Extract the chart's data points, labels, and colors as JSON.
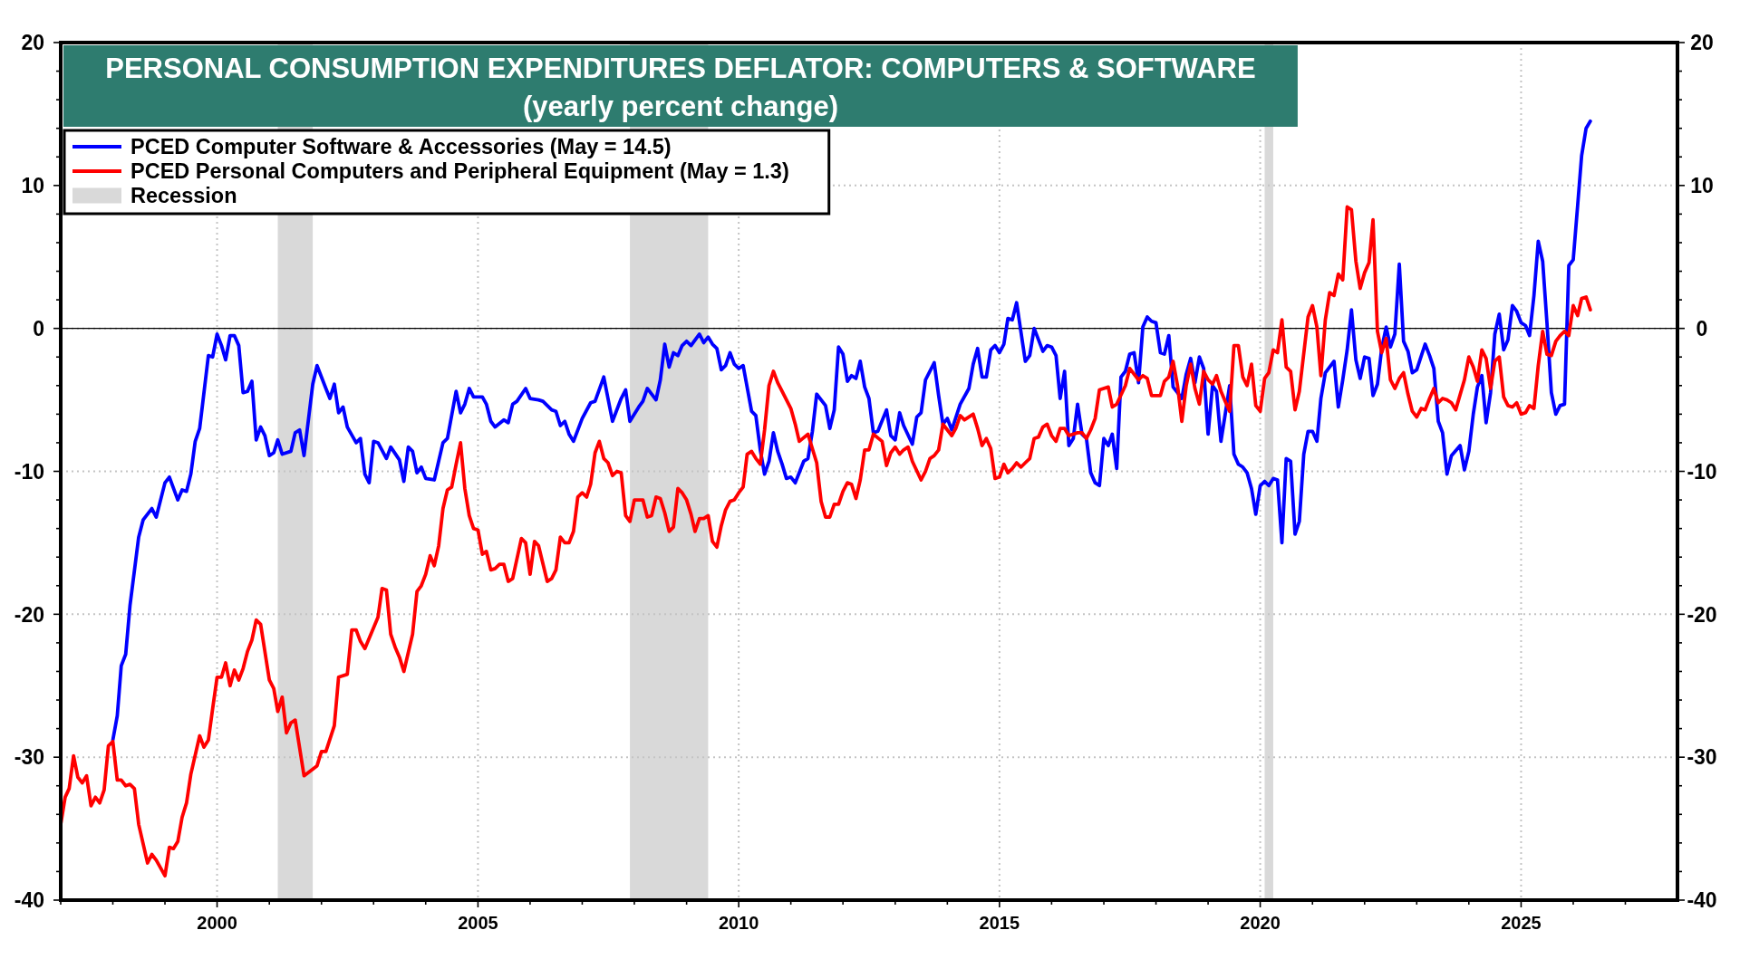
{
  "chart_data": {
    "type": "line",
    "title": "PERSONAL CONSUMPTION EXPENDITURES DEFLATOR: COMPUTERS & SOFTWARE",
    "subtitle": "(yearly percent change)",
    "xlim": [
      "1997-01",
      "2028-01"
    ],
    "xticks": [
      {
        "value": "1997",
        "label": null
      },
      {
        "value": "1998",
        "label": null
      },
      {
        "value": "1999",
        "label": null
      },
      {
        "value": "2000",
        "label": "2000"
      },
      {
        "value": "2001",
        "label": null
      },
      {
        "value": "2002",
        "label": null
      },
      {
        "value": "2003",
        "label": null
      },
      {
        "value": "2004",
        "label": null
      },
      {
        "value": "2005",
        "label": "2005"
      },
      {
        "value": "2006",
        "label": null
      },
      {
        "value": "2007",
        "label": null
      },
      {
        "value": "2008",
        "label": null
      },
      {
        "value": "2009",
        "label": null
      },
      {
        "value": "2010",
        "label": "2010"
      },
      {
        "value": "2011",
        "label": null
      },
      {
        "value": "2012",
        "label": null
      },
      {
        "value": "2013",
        "label": null
      },
      {
        "value": "2014",
        "label": null
      },
      {
        "value": "2015",
        "label": "2015"
      },
      {
        "value": "2016",
        "label": null
      },
      {
        "value": "2017",
        "label": null
      },
      {
        "value": "2018",
        "label": null
      },
      {
        "value": "2019",
        "label": null
      },
      {
        "value": "2020",
        "label": "2020"
      },
      {
        "value": "2021",
        "label": null
      },
      {
        "value": "2022",
        "label": null
      },
      {
        "value": "2023",
        "label": null
      },
      {
        "value": "2024",
        "label": null
      },
      {
        "value": "2025",
        "label": "2025"
      },
      {
        "value": "2026",
        "label": null
      },
      {
        "value": "2027",
        "label": null
      }
    ],
    "ylim": [
      -40,
      20
    ],
    "yticks": [
      -40,
      {
        "value": -38,
        "label": null
      },
      {
        "value": -36,
        "label": null
      },
      {
        "value": -34,
        "label": null
      },
      {
        "value": -32,
        "label": null
      },
      -30,
      {
        "value": -28,
        "label": null
      },
      {
        "value": -26,
        "label": null
      },
      {
        "value": -24,
        "label": null
      },
      {
        "value": -22,
        "label": null
      },
      -20,
      {
        "value": -18,
        "label": null
      },
      {
        "value": -16,
        "label": null
      },
      {
        "value": -14,
        "label": null
      },
      {
        "value": -12,
        "label": null
      },
      -10,
      {
        "value": -8,
        "label": null
      },
      {
        "value": -6,
        "label": null
      },
      {
        "value": -4,
        "label": null
      },
      {
        "value": -2,
        "label": null
      },
      0,
      {
        "value": 2,
        "label": null
      },
      {
        "value": 4,
        "label": null
      },
      {
        "value": 6,
        "label": null
      },
      {
        "value": 8,
        "label": null
      },
      10,
      {
        "value": 12,
        "label": null
      },
      {
        "value": 14,
        "label": null
      },
      {
        "value": 16,
        "label": null
      },
      {
        "value": 18,
        "label": null
      },
      20
    ],
    "y2lim": [
      -40,
      20
    ],
    "y2ticks": [
      -40,
      {
        "value": -38,
        "label": null
      },
      {
        "value": -36,
        "label": null
      },
      {
        "value": -34,
        "label": null
      },
      {
        "value": -32,
        "label": null
      },
      -30,
      {
        "value": -28,
        "label": null
      },
      {
        "value": -26,
        "label": null
      },
      {
        "value": -24,
        "label": null
      },
      {
        "value": -22,
        "label": null
      },
      -20,
      {
        "value": -18,
        "label": null
      },
      {
        "value": -16,
        "label": null
      },
      {
        "value": -14,
        "label": null
      },
      {
        "value": -12,
        "label": null
      },
      -10,
      {
        "value": -8,
        "label": null
      },
      {
        "value": -6,
        "label": null
      },
      {
        "value": -4,
        "label": null
      },
      {
        "value": -2,
        "label": null
      },
      0,
      {
        "value": 2,
        "label": null
      },
      {
        "value": 4,
        "label": null
      },
      {
        "value": 6,
        "label": null
      },
      {
        "value": 8,
        "label": null
      },
      10,
      {
        "value": 12,
        "label": null
      },
      {
        "value": 14,
        "label": null
      },
      {
        "value": 16,
        "label": null
      },
      {
        "value": 18,
        "label": null
      },
      20
    ],
    "grid": true,
    "legend": "top left",
    "bands": [
      {
        "axis": "x",
        "from": "2001-03",
        "to": "2001-11",
        "label": "Recession",
        "color": "#d9d9d9"
      },
      {
        "axis": "x",
        "from": "2007-12",
        "to": "2009-06",
        "color": "#d9d9d9"
      },
      {
        "axis": "x",
        "from": "2020-02",
        "to": "2020-04",
        "color": "#d9d9d9"
      }
    ],
    "ref_lines": [
      {
        "axis": "y",
        "value": 0,
        "color": "#000000"
      }
    ],
    "series": [
      {
        "name": "PCED Computer Software & Accessories (May = 14.5)",
        "color": "#0000ff",
        "x": [
          "1998-01",
          "1998-02",
          "1998-03",
          "1998-04",
          "1998-05",
          "1998-07",
          "1998-08",
          "1998-10",
          "1998-11",
          "1999-01",
          "1999-02",
          "1999-04",
          "1999-05",
          "1999-06",
          "1999-07",
          "1999-08",
          "1999-09",
          "1999-10",
          "1999-11",
          "1999-12",
          "2000-01",
          "2000-02",
          "2000-03",
          "2000-04",
          "2000-05",
          "2000-06",
          "2000-07",
          "2000-08",
          "2000-09",
          "2000-10",
          "2000-11",
          "2000-12",
          "2001-01",
          "2001-02",
          "2001-03",
          "2001-04",
          "2001-06",
          "2001-07",
          "2001-08",
          "2001-09",
          "2001-11",
          "2001-12",
          "2002-02",
          "2002-03",
          "2002-04",
          "2002-05",
          "2002-06",
          "2002-07",
          "2002-09",
          "2002-10",
          "2002-11",
          "2002-12",
          "2003-01",
          "2003-02",
          "2003-04",
          "2003-05",
          "2003-07",
          "2003-08",
          "2003-09",
          "2003-10",
          "2003-11",
          "2003-12",
          "2004-01",
          "2004-03",
          "2004-05",
          "2004-06",
          "2004-08",
          "2004-09",
          "2004-10",
          "2004-11",
          "2004-12",
          "2005-02",
          "2005-03",
          "2005-04",
          "2005-05",
          "2005-07",
          "2005-08",
          "2005-09",
          "2005-10",
          "2005-12",
          "2006-01",
          "2006-03",
          "2006-04",
          "2006-06",
          "2006-07",
          "2006-08",
          "2006-09",
          "2006-10",
          "2006-11",
          "2007-01",
          "2007-03",
          "2007-04",
          "2007-06",
          "2007-08",
          "2007-10",
          "2007-11",
          "2007-12",
          "2008-02",
          "2008-03",
          "2008-04",
          "2008-06",
          "2008-07",
          "2008-08",
          "2008-09",
          "2008-10",
          "2008-11",
          "2008-12",
          "2009-01",
          "2009-02",
          "2009-04",
          "2009-05",
          "2009-06",
          "2009-07",
          "2009-08",
          "2009-09",
          "2009-10",
          "2009-11",
          "2009-12",
          "2010-01",
          "2010-02",
          "2010-04",
          "2010-05",
          "2010-06",
          "2010-07",
          "2010-08",
          "2010-09",
          "2010-10",
          "2010-11",
          "2010-12",
          "2011-01",
          "2011-02",
          "2011-04",
          "2011-05",
          "2011-06",
          "2011-07",
          "2011-09",
          "2011-10",
          "2011-11",
          "2011-12",
          "2012-01",
          "2012-02",
          "2012-03",
          "2012-04",
          "2012-05",
          "2012-06",
          "2012-07",
          "2012-08",
          "2012-09",
          "2012-11",
          "2012-12",
          "2013-01",
          "2013-02",
          "2013-03",
          "2013-05",
          "2013-06",
          "2013-07",
          "2013-08",
          "2013-10",
          "2013-11",
          "2013-12",
          "2014-01",
          "2014-02",
          "2014-04",
          "2014-06",
          "2014-07",
          "2014-08",
          "2014-09",
          "2014-10",
          "2014-11",
          "2014-12",
          "2015-01",
          "2015-02",
          "2015-03",
          "2015-04",
          "2015-05",
          "2015-07",
          "2015-08",
          "2015-09",
          "2015-11",
          "2015-12",
          "2016-01",
          "2016-02",
          "2016-03",
          "2016-04",
          "2016-05",
          "2016-06",
          "2016-07",
          "2016-08",
          "2016-09",
          "2016-10",
          "2016-11",
          "2016-12",
          "2017-01",
          "2017-02",
          "2017-03",
          "2017-04",
          "2017-05",
          "2017-06",
          "2017-07",
          "2017-08",
          "2017-09",
          "2017-10",
          "2017-11",
          "2017-12",
          "2018-01",
          "2018-02",
          "2018-03",
          "2018-04",
          "2018-05",
          "2018-06",
          "2018-07",
          "2018-08",
          "2018-09",
          "2018-10",
          "2018-11",
          "2018-12",
          "2019-01",
          "2019-02",
          "2019-03",
          "2019-04",
          "2019-05",
          "2019-06",
          "2019-07",
          "2019-08",
          "2019-09",
          "2019-10",
          "2019-11",
          "2019-12",
          "2020-01",
          "2020-02",
          "2020-03",
          "2020-04",
          "2020-05",
          "2020-06",
          "2020-07",
          "2020-08",
          "2020-09",
          "2020-10",
          "2020-11",
          "2020-12",
          "2021-01",
          "2021-02",
          "2021-03",
          "2021-04",
          "2021-06",
          "2021-07",
          "2021-08",
          "2021-09",
          "2021-10",
          "2021-11",
          "2021-12",
          "2022-01",
          "2022-02",
          "2022-03",
          "2022-04",
          "2022-05",
          "2022-06",
          "2022-07",
          "2022-08",
          "2022-09",
          "2022-10",
          "2022-11",
          "2022-12",
          "2023-01",
          "2023-03",
          "2023-04",
          "2023-05",
          "2023-06",
          "2023-07",
          "2023-08",
          "2023-09",
          "2023-11",
          "2023-12",
          "2024-01",
          "2024-02",
          "2024-03",
          "2024-04",
          "2024-05",
          "2024-06",
          "2024-07",
          "2024-08",
          "2024-09",
          "2024-10",
          "2024-11",
          "2024-12",
          "2025-01",
          "2025-02",
          "2025-03",
          "2025-04",
          "2025-05",
          "2025-06",
          "2025-07",
          "2025-08",
          "2025-09",
          "2025-10",
          "2025-11",
          "2025-12",
          "2026-01",
          "2026-02",
          "2026-03",
          "2026-04",
          "2026-05"
        ],
        "values": [
          -28.8,
          -27.1,
          -23.6,
          -22.8,
          -19.4,
          -14.6,
          -13.4,
          -12.6,
          -13.2,
          -10.8,
          -10.4,
          -12.0,
          -11.3,
          -11.4,
          -10.2,
          -7.9,
          -7.0,
          -4.5,
          -1.9,
          -2.0,
          -0.4,
          -1.2,
          -2.2,
          -0.5,
          -0.5,
          -1.2,
          -4.5,
          -4.4,
          -3.7,
          -7.8,
          -6.9,
          -7.5,
          -8.9,
          -8.7,
          -7.8,
          -8.8,
          -8.6,
          -7.3,
          -7.1,
          -8.9,
          -3.9,
          -2.6,
          -4.2,
          -4.9,
          -3.9,
          -5.9,
          -5.5,
          -6.9,
          -8.0,
          -7.7,
          -10.2,
          -10.8,
          -7.9,
          -8.0,
          -9.1,
          -8.3,
          -9.2,
          -10.7,
          -8.3,
          -8.6,
          -10.1,
          -9.7,
          -10.5,
          -10.6,
          -8.0,
          -7.7,
          -4.4,
          -5.9,
          -5.3,
          -4.2,
          -4.8,
          -4.8,
          -5.3,
          -6.5,
          -6.9,
          -6.4,
          -6.6,
          -5.3,
          -5.1,
          -4.2,
          -4.9,
          -5.0,
          -5.1,
          -5.7,
          -5.8,
          -6.8,
          -6.5,
          -7.4,
          -7.9,
          -6.3,
          -5.2,
          -5.1,
          -3.4,
          -6.5,
          -4.9,
          -4.3,
          -6.5,
          -5.5,
          -5.1,
          -4.2,
          -5.0,
          -3.6,
          -1.1,
          -2.7,
          -1.7,
          -1.9,
          -1.2,
          -0.9,
          -1.2,
          -0.4,
          -1.0,
          -0.6,
          -1.1,
          -1.4,
          -2.9,
          -2.6,
          -1.7,
          -2.5,
          -2.8,
          -2.6,
          -5.8,
          -6.1,
          -8.5,
          -10.2,
          -9.3,
          -7.3,
          -8.6,
          -9.5,
          -10.5,
          -10.4,
          -10.8,
          -9.3,
          -9.1,
          -7.2,
          -4.6,
          -5.4,
          -7.0,
          -5.7,
          -1.3,
          -1.8,
          -3.7,
          -3.3,
          -3.5,
          -2.3,
          -4.1,
          -4.9,
          -7.3,
          -7.2,
          -5.7,
          -7.5,
          -7.8,
          -5.9,
          -6.8,
          -8.1,
          -6.2,
          -5.9,
          -3.6,
          -2.4,
          -4.7,
          -6.7,
          -6.3,
          -7.1,
          -5.3,
          -4.2,
          -2.5,
          -1.4,
          -3.4,
          -3.4,
          -1.5,
          -1.2,
          -1.7,
          -1.1,
          0.7,
          0.6,
          1.8,
          -2.3,
          -1.9,
          0.0,
          -1.6,
          -1.2,
          -1.3,
          -1.9,
          -4.9,
          -3.0,
          -8.2,
          -7.7,
          -5.3,
          -7.4,
          -7.7,
          -10.1,
          -10.8,
          -11.0,
          -7.7,
          -8.2,
          -7.4,
          -9.8,
          -3.4,
          -3.0,
          -1.8,
          -1.7,
          -3.8,
          0.1,
          0.8,
          0.5,
          0.4,
          -1.7,
          -1.8,
          -0.5,
          -4.1,
          -4.5,
          -4.9,
          -3.2,
          -2.1,
          -3.8,
          -2.0,
          -2.8,
          -7.4,
          -4.0,
          -4.4,
          -7.9,
          -6.0,
          -4.0,
          -8.8,
          -9.5,
          -9.7,
          -10.1,
          -11.2,
          -13.0,
          -11.0,
          -10.7,
          -11.0,
          -10.5,
          -10.6,
          -15.0,
          -9.1,
          -9.3,
          -14.4,
          -13.5,
          -8.8,
          -7.2,
          -7.2,
          -7.9,
          -4.9,
          -3.1,
          -2.3,
          -5.5,
          -3.6,
          -1.5,
          1.3,
          -2.2,
          -3.5,
          -2.0,
          -2.1,
          -4.7,
          -3.9,
          -1.4,
          0.1,
          -1.3,
          -0.4,
          4.5,
          -0.9,
          -1.6,
          -3.1,
          -2.9,
          -1.1,
          -1.9,
          -2.8,
          -6.5,
          -7.3,
          -10.2,
          -8.9,
          -8.2,
          -9.9,
          -8.6,
          -6.0,
          -4.1,
          -3.3,
          -6.6,
          -4.5,
          -0.4,
          1.0,
          -1.5,
          -0.8,
          1.6,
          1.2,
          0.4,
          0.2,
          -0.5,
          2.3,
          6.1,
          4.7,
          0.4,
          -4.5,
          -6.0,
          -5.4,
          -5.3,
          4.4,
          4.8,
          8.6,
          12.1,
          14.0,
          14.5
        ]
      },
      {
        "name": "PCED Personal Computers and Peripheral Equipment (May = 1.3)",
        "color": "#ff0000",
        "x": [
          "1997-01",
          "1997-02",
          "1997-03",
          "1997-04",
          "1997-05",
          "1997-06",
          "1997-07",
          "1997-08",
          "1997-09",
          "1997-10",
          "1997-11",
          "1997-12",
          "1998-01",
          "1998-02",
          "1998-03",
          "1998-04",
          "1998-05",
          "1998-06",
          "1998-07",
          "1998-09",
          "1998-10",
          "1998-11",
          "1999-01",
          "1999-02",
          "1999-03",
          "1999-04",
          "1999-05",
          "1999-06",
          "1999-07",
          "1999-09",
          "1999-10",
          "1999-11",
          "1999-12",
          "2000-01",
          "2000-02",
          "2000-03",
          "2000-04",
          "2000-05",
          "2000-06",
          "2000-07",
          "2000-08",
          "2000-09",
          "2000-10",
          "2000-11",
          "2001-01",
          "2001-02",
          "2001-03",
          "2001-04",
          "2001-05",
          "2001-06",
          "2001-07",
          "2001-09",
          "2001-12",
          "2002-01",
          "2002-02",
          "2002-04",
          "2002-05",
          "2002-07",
          "2002-08",
          "2002-09",
          "2002-10",
          "2002-11",
          "2003-02",
          "2003-03",
          "2003-04",
          "2003-05",
          "2003-06",
          "2003-07",
          "2003-08",
          "2003-10",
          "2003-11",
          "2003-12",
          "2004-01",
          "2004-02",
          "2004-03",
          "2004-04",
          "2004-05",
          "2004-06",
          "2004-07",
          "2004-08",
          "2004-09",
          "2004-10",
          "2004-11",
          "2004-12",
          "2005-01",
          "2005-02",
          "2005-03",
          "2005-04",
          "2005-05",
          "2005-06",
          "2005-07",
          "2005-08",
          "2005-09",
          "2005-11",
          "2005-12",
          "2006-01",
          "2006-02",
          "2006-03",
          "2006-05",
          "2006-06",
          "2006-07",
          "2006-08",
          "2006-09",
          "2006-10",
          "2006-11",
          "2006-12",
          "2007-01",
          "2007-02",
          "2007-03",
          "2007-04",
          "2007-05",
          "2007-06",
          "2007-07",
          "2007-08",
          "2007-09",
          "2007-10",
          "2007-11",
          "2007-12",
          "2008-01",
          "2008-03",
          "2008-04",
          "2008-05",
          "2008-06",
          "2008-07",
          "2008-08",
          "2008-09",
          "2008-10",
          "2008-11",
          "2008-12",
          "2009-01",
          "2009-02",
          "2009-03",
          "2009-04",
          "2009-05",
          "2009-06",
          "2009-07",
          "2009-08",
          "2009-09",
          "2009-10",
          "2009-11",
          "2009-12",
          "2010-01",
          "2010-02",
          "2010-03",
          "2010-04",
          "2010-05",
          "2010-06",
          "2010-07",
          "2010-08",
          "2010-09",
          "2010-10",
          "2010-11",
          "2011-01",
          "2011-02",
          "2011-03",
          "2011-05",
          "2011-07",
          "2011-08",
          "2011-09",
          "2011-10",
          "2011-11",
          "2011-12",
          "2012-01",
          "2012-02",
          "2012-03",
          "2012-04",
          "2012-05",
          "2012-06",
          "2012-07",
          "2012-08",
          "2012-10",
          "2012-11",
          "2012-12",
          "2013-01",
          "2013-02",
          "2013-03",
          "2013-04",
          "2013-05",
          "2013-07",
          "2013-08",
          "2013-09",
          "2013-10",
          "2013-11",
          "2013-12",
          "2014-01",
          "2014-02",
          "2014-03",
          "2014-04",
          "2014-05",
          "2014-07",
          "2014-08",
          "2014-09",
          "2014-10",
          "2014-11",
          "2014-12",
          "2015-01",
          "2015-02",
          "2015-03",
          "2015-04",
          "2015-05",
          "2015-06",
          "2015-07",
          "2015-08",
          "2015-09",
          "2015-10",
          "2015-11",
          "2015-12",
          "2016-01",
          "2016-02",
          "2016-03",
          "2016-04",
          "2016-05",
          "2016-07",
          "2016-08",
          "2016-09",
          "2016-10",
          "2016-11",
          "2016-12",
          "2017-02",
          "2017-03",
          "2017-04",
          "2017-06",
          "2017-07",
          "2017-09",
          "2017-10",
          "2017-11",
          "2017-12",
          "2018-02",
          "2018-03",
          "2018-04",
          "2018-05",
          "2018-06",
          "2018-07",
          "2018-08",
          "2018-09",
          "2018-10",
          "2018-11",
          "2018-12",
          "2019-01",
          "2019-02",
          "2019-03",
          "2019-04",
          "2019-05",
          "2019-06",
          "2019-07",
          "2019-08",
          "2019-09",
          "2019-10",
          "2019-11",
          "2019-12",
          "2020-01",
          "2020-02",
          "2020-03",
          "2020-04",
          "2020-05",
          "2020-06",
          "2020-07",
          "2020-08",
          "2020-09",
          "2020-10",
          "2020-12",
          "2021-01",
          "2021-02",
          "2021-03",
          "2021-04",
          "2021-05",
          "2021-06",
          "2021-07",
          "2021-08",
          "2021-09",
          "2021-10",
          "2021-11",
          "2021-12",
          "2022-01",
          "2022-02",
          "2022-03",
          "2022-04",
          "2022-05",
          "2022-06",
          "2022-07",
          "2022-08",
          "2022-09",
          "2022-10",
          "2022-11",
          "2022-12",
          "2023-01",
          "2023-02",
          "2023-03",
          "2023-04",
          "2023-05",
          "2023-06",
          "2023-07",
          "2023-08",
          "2023-09",
          "2023-10",
          "2023-12",
          "2024-01",
          "2024-02",
          "2024-03",
          "2024-04",
          "2024-05",
          "2024-06",
          "2024-07",
          "2024-08",
          "2024-09",
          "2024-10",
          "2024-11",
          "2024-12",
          "2025-01",
          "2025-02",
          "2025-03",
          "2025-04",
          "2025-05",
          "2025-06",
          "2025-07",
          "2025-08",
          "2025-09",
          "2025-10",
          "2025-11",
          "2025-12",
          "2026-01",
          "2026-02",
          "2026-03",
          "2026-04",
          "2026-05"
        ],
        "values": [
          -34.7,
          -32.8,
          -32.2,
          -29.9,
          -31.4,
          -31.8,
          -31.3,
          -33.4,
          -32.8,
          -33.2,
          -32.3,
          -29.2,
          -28.9,
          -31.6,
          -31.6,
          -32.0,
          -31.9,
          -32.2,
          -34.7,
          -37.4,
          -36.8,
          -37.2,
          -38.3,
          -36.3,
          -36.4,
          -35.9,
          -34.2,
          -33.2,
          -31.2,
          -28.5,
          -29.3,
          -28.8,
          -26.6,
          -24.4,
          -24.4,
          -23.4,
          -25.0,
          -23.9,
          -24.6,
          -23.8,
          -22.6,
          -21.8,
          -20.4,
          -20.7,
          -24.6,
          -25.2,
          -26.8,
          -25.8,
          -28.3,
          -27.6,
          -27.4,
          -31.3,
          -30.6,
          -29.6,
          -29.6,
          -27.8,
          -24.4,
          -24.2,
          -21.1,
          -21.1,
          -21.9,
          -22.4,
          -20.2,
          -18.2,
          -18.3,
          -21.4,
          -22.3,
          -23.0,
          -24.0,
          -21.4,
          -18.4,
          -18.0,
          -17.2,
          -15.9,
          -16.6,
          -15.2,
          -12.6,
          -11.3,
          -11.1,
          -9.5,
          -8.0,
          -11.2,
          -13.1,
          -14.0,
          -14.1,
          -15.8,
          -15.6,
          -16.9,
          -16.8,
          -16.5,
          -16.5,
          -17.7,
          -17.5,
          -14.7,
          -15.0,
          -17.2,
          -14.9,
          -15.2,
          -17.7,
          -17.5,
          -16.9,
          -14.6,
          -15.0,
          -15.0,
          -14.2,
          -11.8,
          -11.5,
          -11.8,
          -10.9,
          -8.7,
          -7.9,
          -9.1,
          -9.4,
          -10.3,
          -10.0,
          -10.1,
          -13.1,
          -13.5,
          -12.0,
          -12.0,
          -13.2,
          -13.1,
          -11.8,
          -11.9,
          -12.9,
          -14.2,
          -13.9,
          -11.2,
          -11.5,
          -12.0,
          -13.0,
          -14.2,
          -13.3,
          -13.3,
          -13.1,
          -14.9,
          -15.3,
          -13.8,
          -12.7,
          -12.1,
          -12.0,
          -11.5,
          -11.1,
          -8.8,
          -8.6,
          -9.1,
          -9.5,
          -7.1,
          -4.0,
          -3.0,
          -3.8,
          -4.4,
          -5.6,
          -6.7,
          -7.9,
          -7.4,
          -9.4,
          -12.1,
          -13.2,
          -13.2,
          -12.3,
          -12.3,
          -11.4,
          -10.8,
          -10.9,
          -11.9,
          -10.6,
          -8.5,
          -8.5,
          -7.4,
          -7.9,
          -9.6,
          -8.7,
          -8.3,
          -8.8,
          -8.5,
          -8.3,
          -9.3,
          -10.6,
          -10.0,
          -9.1,
          -8.9,
          -8.5,
          -6.7,
          -7.1,
          -7.5,
          -7.0,
          -6.1,
          -6.4,
          -6.0,
          -7.0,
          -8.2,
          -7.7,
          -8.4,
          -10.5,
          -10.4,
          -9.5,
          -10.1,
          -9.8,
          -9.4,
          -9.7,
          -9.4,
          -9.1,
          -7.7,
          -7.6,
          -6.9,
          -6.7,
          -7.5,
          -7.9,
          -7.0,
          -7.0,
          -7.5,
          -7.3,
          -7.3,
          -7.7,
          -7.1,
          -6.3,
          -4.3,
          -4.1,
          -5.5,
          -5.3,
          -4.0,
          -2.8,
          -3.6,
          -3.3,
          -3.5,
          -4.7,
          -4.7,
          -3.7,
          -3.4,
          -2.3,
          -4.0,
          -6.5,
          -4.0,
          -2.5,
          -4.2,
          -5.3,
          -3.0,
          -3.6,
          -3.9,
          -3.3,
          -4.4,
          -5.1,
          -5.8,
          -1.2,
          -1.2,
          -3.4,
          -4.0,
          -2.5,
          -5.4,
          -5.8,
          -3.5,
          -3.1,
          -1.5,
          -1.7,
          0.6,
          -2.7,
          -3.0,
          -5.7,
          -4.4,
          0.8,
          1.6,
          0.1,
          -3.3,
          0.6,
          2.5,
          2.3,
          3.8,
          3.4,
          8.5,
          8.3,
          4.7,
          2.8,
          3.9,
          4.6,
          7.6,
          -0.2,
          -1.7,
          -0.7,
          -3.6,
          -4.2,
          -3.5,
          -3.1,
          -4.6,
          -5.8,
          -6.2,
          -5.6,
          -5.7,
          -4.9,
          -4.2,
          -5.2,
          -4.9,
          -5.0,
          -5.2,
          -5.7,
          -3.6,
          -2.0,
          -2.7,
          -3.7,
          -1.5,
          -2.1,
          -4.2,
          -2.3,
          -2.0,
          -4.8,
          -5.4,
          -5.5,
          -5.2,
          -6.0,
          -5.9,
          -5.4,
          -5.6,
          -2.6,
          -0.2,
          -1.8,
          -1.9,
          -0.9,
          -0.5,
          -0.2,
          -0.5,
          1.6,
          0.9,
          2.1,
          2.2,
          1.3
        ]
      }
    ]
  }
}
